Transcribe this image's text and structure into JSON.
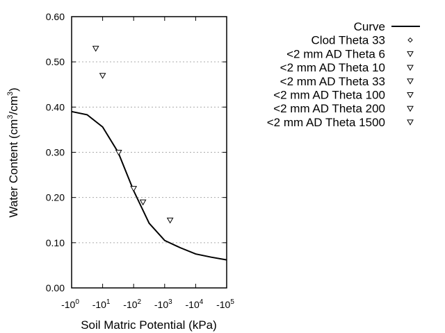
{
  "chart_data": {
    "type": "scatter",
    "title": "",
    "xlabel": "Soil Matric Potential (kPa)",
    "ylabel_main": "Water Content (cm",
    "ylabel_sup1": "3",
    "ylabel_mid": "/cm",
    "ylabel_sup2": "3",
    "ylabel_end": ")",
    "x_scale": "log (negative potentials)",
    "xlim": [
      -1,
      -100000
    ],
    "ylim": [
      0,
      0.6
    ],
    "y_ticks": [
      "0.00",
      "0.10",
      "0.20",
      "0.30",
      "0.40",
      "0.50",
      "0.60"
    ],
    "x_ticks": [
      {
        "base": "-10",
        "exp": "0"
      },
      {
        "base": "-10",
        "exp": "1"
      },
      {
        "base": "-10",
        "exp": "2"
      },
      {
        "base": "-10",
        "exp": "3"
      },
      {
        "base": "-10",
        "exp": "4"
      },
      {
        "base": "-10",
        "exp": "5"
      }
    ],
    "grid": "horizontal dotted",
    "legend_placement": "right",
    "curve": {
      "name": "Curve",
      "x": [
        -1,
        -3.16,
        -10,
        -31.6,
        -100,
        -316,
        -1000,
        -3162,
        -10000,
        -31623,
        -100000
      ],
      "y": [
        0.39,
        0.383,
        0.356,
        0.3,
        0.215,
        0.143,
        0.105,
        0.089,
        0.075,
        0.068,
        0.062
      ]
    },
    "series": [
      {
        "name": "Clod Theta 33",
        "marker": "diamond",
        "x": [],
        "y": []
      },
      {
        "name": "<2 mm AD Theta 6",
        "marker": "triangle-down",
        "x": [
          -6
        ],
        "y": [
          0.53
        ]
      },
      {
        "name": "<2 mm AD Theta 10",
        "marker": "triangle-down",
        "x": [
          -10
        ],
        "y": [
          0.47
        ]
      },
      {
        "name": "<2 mm AD Theta 33",
        "marker": "triangle-down",
        "x": [
          -33
        ],
        "y": [
          0.3
        ]
      },
      {
        "name": "<2 mm AD Theta 100",
        "marker": "triangle-down",
        "x": [
          -100
        ],
        "y": [
          0.22
        ]
      },
      {
        "name": "<2 mm AD Theta 200",
        "marker": "triangle-down",
        "x": [
          -200
        ],
        "y": [
          0.19
        ]
      },
      {
        "name": "<2 mm AD Theta 1500",
        "marker": "triangle-down",
        "x": [
          -1500
        ],
        "y": [
          0.15
        ]
      }
    ],
    "colors": {
      "curve": "#000000",
      "grid": "#aaaaaa",
      "marker": "#000000"
    }
  }
}
